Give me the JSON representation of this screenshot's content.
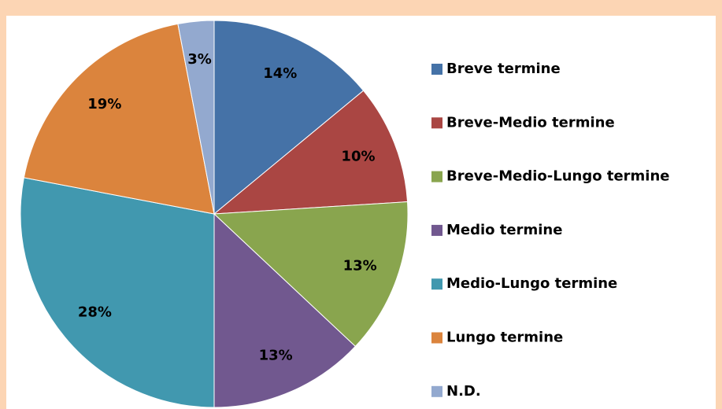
{
  "chart_data": {
    "type": "pie",
    "categories": [
      "Breve termine",
      "Breve-Medio termine",
      "Breve-Medio-Lungo termine",
      "Medio termine",
      "Medio-Lungo termine",
      "Lungo termine",
      "N.D."
    ],
    "values": [
      14,
      10,
      13,
      13,
      28,
      19,
      3
    ],
    "value_labels": [
      "14%",
      "10%",
      "13%",
      "13%",
      "28%",
      "19%",
      "3%"
    ],
    "colors": [
      "#4572a7",
      "#aa4643",
      "#89a54e",
      "#71588f",
      "#4198af",
      "#db843d",
      "#93a9cf"
    ],
    "legend": "right"
  }
}
